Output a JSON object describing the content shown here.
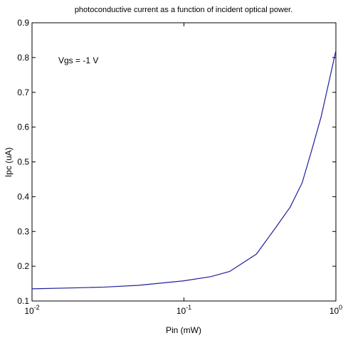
{
  "chart_data": {
    "type": "line",
    "title": "photoconductive current as a function of incident optical power.",
    "xlabel": "Pin (mW)",
    "ylabel": "Ipc (uA)",
    "annotations": [
      "Vgs = -1 V"
    ],
    "xscale": "log",
    "x": [
      0.01,
      0.02,
      0.03,
      0.05,
      0.1,
      0.15,
      0.2,
      0.3,
      0.4,
      0.5,
      0.6,
      0.7,
      0.8,
      0.9,
      1.0
    ],
    "series": [
      {
        "name": "Ipc",
        "color": "#1f1f9c",
        "values": [
          0.135,
          0.138,
          0.14,
          0.145,
          0.158,
          0.17,
          0.185,
          0.235,
          0.31,
          0.37,
          0.44,
          0.54,
          0.63,
          0.73,
          0.82
        ]
      }
    ],
    "xlim": [
      0.01,
      1
    ],
    "ylim": [
      0.1,
      0.9
    ],
    "xticks": [
      {
        "value": 0.01,
        "label": "10",
        "exponent": "-2"
      },
      {
        "value": 0.1,
        "label": "10",
        "exponent": "-1"
      },
      {
        "value": 1,
        "label": "10",
        "exponent": "0"
      }
    ],
    "yticks": [
      0.1,
      0.2,
      0.3,
      0.4,
      0.5,
      0.6,
      0.7,
      0.8,
      0.9
    ],
    "grid": false
  }
}
